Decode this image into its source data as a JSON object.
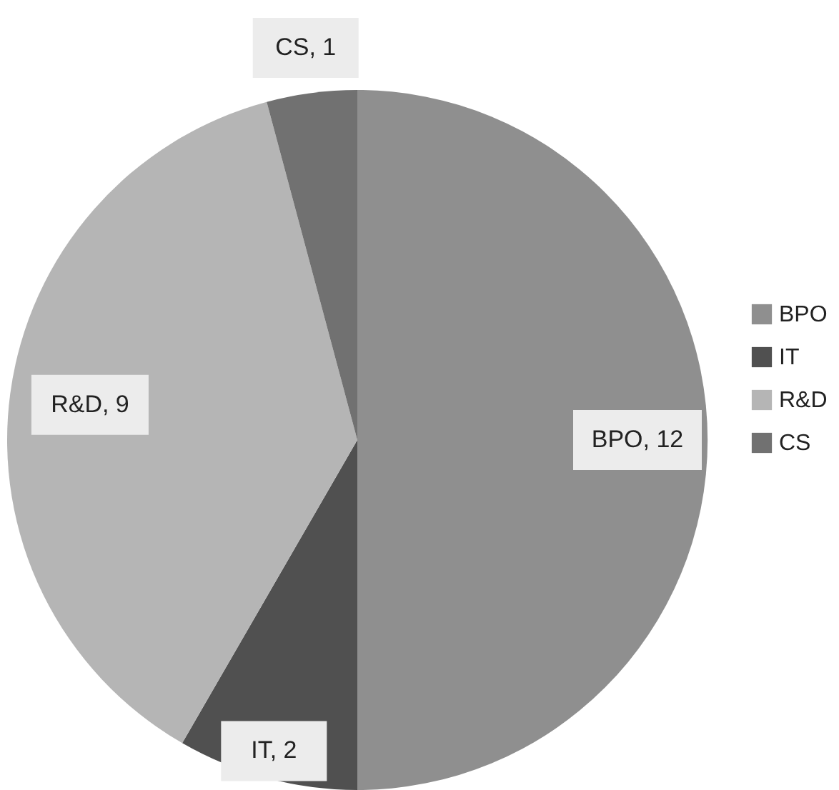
{
  "chart_data": {
    "type": "pie",
    "categories": [
      "BPO",
      "IT",
      "R&D",
      "CS"
    ],
    "values": [
      12,
      2,
      9,
      1
    ],
    "value_labels": [
      "BPO, 12",
      "IT, 2",
      "R&D, 9",
      "CS, 1"
    ],
    "colors": [
      "#8f8f8f",
      "#505050",
      "#b5b5b5",
      "#717171"
    ],
    "legend": "right"
  }
}
